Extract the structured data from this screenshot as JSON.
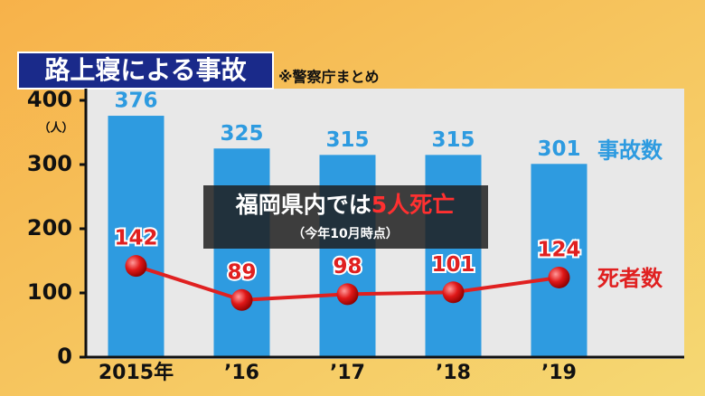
{
  "chart_data": {
    "type": "bar",
    "title": "路上寝による事故",
    "subtitle": "※警察庁まとめ",
    "y_unit": "（人）",
    "categories": [
      "2015年",
      "’16",
      "’17",
      "’18",
      "’19"
    ],
    "series": [
      {
        "name": "事故数",
        "type": "bar",
        "color": "#2e9be0",
        "values": [
          376,
          325,
          315,
          315,
          301
        ]
      },
      {
        "name": "死者数",
        "type": "line",
        "color": "#e02020",
        "values": [
          142,
          89,
          98,
          101,
          124
        ]
      }
    ],
    "ylim": [
      0,
      400
    ],
    "yticks": [
      0,
      100,
      200,
      300,
      400
    ],
    "annotation": {
      "text": "福岡県内では",
      "highlight": "5人死亡",
      "note": "（今年10月時点）"
    }
  }
}
